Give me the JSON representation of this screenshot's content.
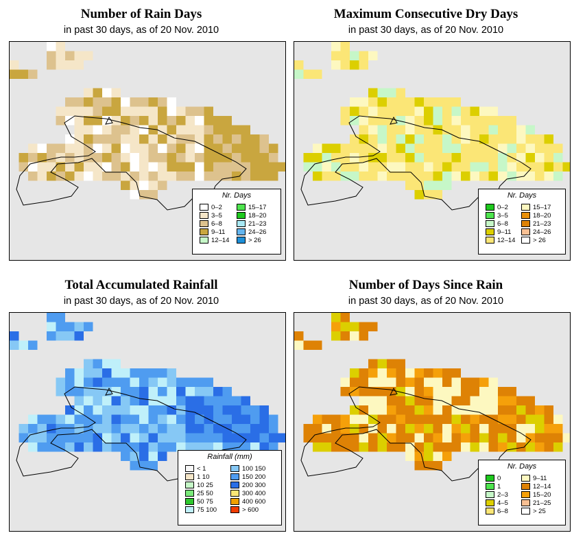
{
  "panels": [
    {
      "title": "Number of Rain Days",
      "subtitle": "in past 30 days, as of  20 Nov. 2010",
      "legend": {
        "title": "Nr. Days",
        "items": [
          {
            "label": "0–2",
            "color": "#ffffff"
          },
          {
            "label": "3–5",
            "color": "#f5e6c8"
          },
          {
            "label": "6–8",
            "color": "#ddc28e"
          },
          {
            "label": "9–11",
            "color": "#c9a63f"
          },
          {
            "label": "12–14",
            "color": "#c6f7c8"
          },
          {
            "label": "15–17",
            "color": "#4ee44e"
          },
          {
            "label": "18–20",
            "color": "#1ec81e"
          },
          {
            "label": "21–23",
            "color": "#a9e9f4"
          },
          {
            "label": "24–26",
            "color": "#63b5ef"
          },
          {
            "label": "> 26",
            "color": "#1d8fd8"
          }
        ]
      }
    },
    {
      "title": "Maximum Consecutive Dry Days",
      "subtitle": "in past 30 days, as of  20 Nov. 2010",
      "legend": {
        "title": "Nr. Days",
        "items": [
          {
            "label": "0–2",
            "color": "#1ec81e"
          },
          {
            "label": "3–5",
            "color": "#4ee44e"
          },
          {
            "label": "6–8",
            "color": "#c6f7c8"
          },
          {
            "label": "9–11",
            "color": "#dccf00"
          },
          {
            "label": "12–14",
            "color": "#fbe676"
          },
          {
            "label": "15–17",
            "color": "#fdf8c0"
          },
          {
            "label": "18–20",
            "color": "#e8900a"
          },
          {
            "label": "21–23",
            "color": "#de8205"
          },
          {
            "label": "24–26",
            "color": "#f8c094"
          },
          {
            "label": "> 26",
            "color": "#ffffff"
          }
        ]
      }
    },
    {
      "title": "Total Accumulated Rainfall",
      "subtitle": "in past 30 days, as of  20 Nov. 2010",
      "legend": {
        "title": "Rainfall (mm)",
        "items": [
          {
            "label": "< 1",
            "color": "#f7f7f7"
          },
          {
            "label": "1    10",
            "color": "#f5e6c8"
          },
          {
            "label": "10    25",
            "color": "#c6f7c8"
          },
          {
            "label": "25    50",
            "color": "#7aea7a"
          },
          {
            "label": "50    75",
            "color": "#2ec82e"
          },
          {
            "label": "75   100",
            "color": "#bff0fa"
          },
          {
            "label": "100   150",
            "color": "#86c8f5"
          },
          {
            "label": "150   200",
            "color": "#4f9cf0"
          },
          {
            "label": "200   300",
            "color": "#2a6ee6"
          },
          {
            "label": "300   400",
            "color": "#fbe676"
          },
          {
            "label": "400   600",
            "color": "#f0a000"
          },
          {
            "label": "> 600",
            "color": "#f03c00"
          }
        ]
      }
    },
    {
      "title": "Number of Days Since Rain",
      "subtitle": "in past 30 days, as of  20 Nov. 2010",
      "legend": {
        "title": "Nr. Days",
        "items": [
          {
            "label": "0",
            "color": "#1ec81e"
          },
          {
            "label": "1",
            "color": "#4ee44e"
          },
          {
            "label": "2–3",
            "color": "#c6f7c8"
          },
          {
            "label": "4–5",
            "color": "#dccf00"
          },
          {
            "label": "6–8",
            "color": "#fbe676"
          },
          {
            "label": "9–11",
            "color": "#fdf8c0"
          },
          {
            "label": "12–14",
            "color": "#de8205"
          },
          {
            "label": "15–20",
            "color": "#f5a00a"
          },
          {
            "label": "21–25",
            "color": "#f8c094"
          },
          {
            "label": "> 25",
            "color": "#ffffff"
          }
        ]
      }
    }
  ]
}
